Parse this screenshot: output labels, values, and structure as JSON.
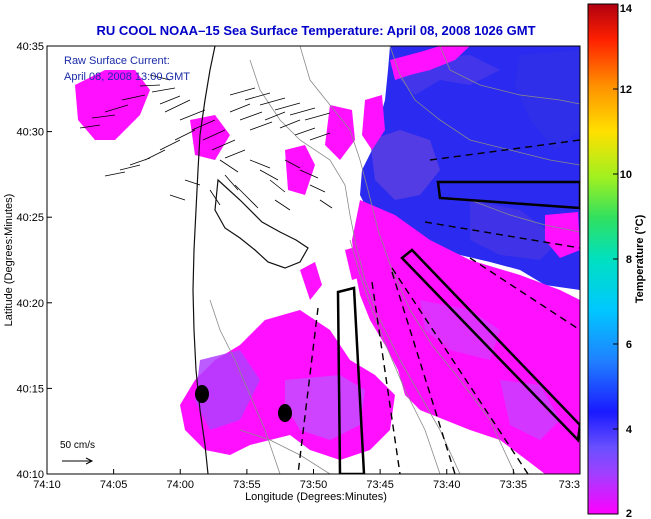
{
  "chart_data": {
    "type": "heatmap",
    "title": "RU COOL  NOAA–15  Sea Surface Temperature:  April 08, 2008 1026 GMT",
    "xlabel": "Longitude (Degrees:Minutes)",
    "ylabel": "Latitude (Degrees:Minutes)",
    "x_ticks": [
      "74:10",
      "74:05",
      "74:00",
      "73:55",
      "73:50",
      "73:45",
      "73:40",
      "73:35",
      "73:3"
    ],
    "y_ticks": [
      "40:35",
      "40:30",
      "40:25",
      "40:20",
      "40:15",
      "40:10"
    ],
    "xlim_minutes_west": [
      70,
      30
    ],
    "ylim_minutes_north": [
      10,
      35
    ],
    "colorbar": {
      "label": "Temperature (°C)",
      "range": [
        2,
        14
      ],
      "ticks": [
        "14",
        "12",
        "10",
        "8",
        "6",
        "4",
        "2"
      ],
      "colors": [
        "#ff00ff",
        "#a040ff",
        "#6a50ff",
        "#1a1aff",
        "#2080ff",
        "#00c8ff",
        "#00e0c0",
        "#30e060",
        "#a0f020",
        "#ffe000",
        "#ff9000",
        "#ff2000",
        "#b00010"
      ]
    },
    "annotations": {
      "current_label": "Raw Surface Current:",
      "current_time": "April 08, 2008 13:00 GMT",
      "scale_label": "50 cm/s"
    },
    "warm_patches_temp_c": [
      3.0,
      3.2
    ],
    "cold_region_temp_c": [
      3.6,
      4.3
    ]
  }
}
